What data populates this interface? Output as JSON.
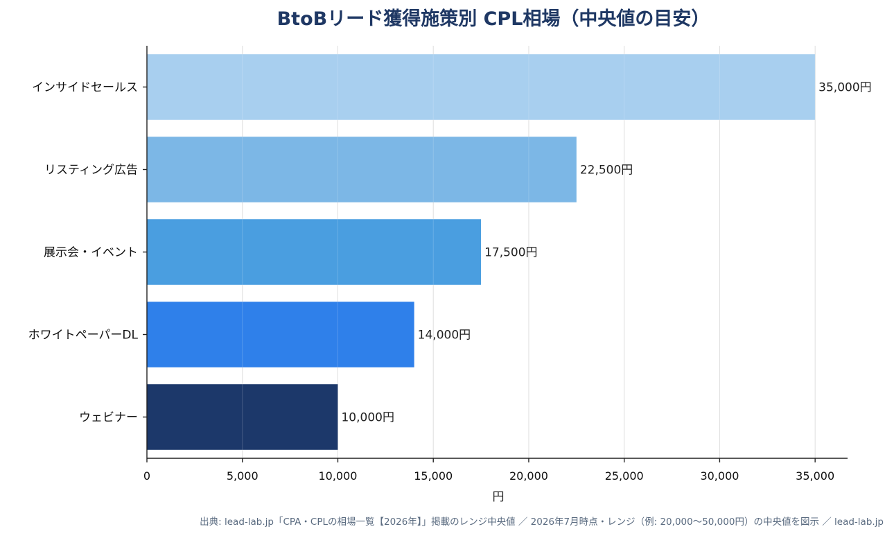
{
  "chart_data": {
    "type": "bar",
    "orientation": "horizontal",
    "title": "BtoBリード獲得施策別 CPL相場（中央値の目安）",
    "xlabel": "円",
    "ylabel": "",
    "xlim": [
      0,
      36700
    ],
    "x_ticks": [
      0,
      5000,
      10000,
      15000,
      20000,
      25000,
      30000,
      35000
    ],
    "x_tick_labels": [
      "0",
      "5,000",
      "10,000",
      "15,000",
      "20,000",
      "25,000",
      "30,000",
      "35,000"
    ],
    "categories": [
      "インサイドセールス",
      "リスティング広告",
      "展示会・イベント",
      "ホワイトペーパーDL",
      "ウェビナー"
    ],
    "values": [
      35000,
      22500,
      17500,
      14000,
      10000
    ],
    "data_labels": [
      "35,000円",
      "22,500円",
      "17,500円",
      "14,000円",
      "10,000円"
    ],
    "colors": [
      "#a8cfef",
      "#7cb7e6",
      "#4a9ee0",
      "#2f80ea",
      "#1c386a"
    ],
    "grid": "vertical",
    "legend": "none",
    "source_note": "出典: lead-lab.jp「CPA・CPLの相場一覧【2026年】」掲載のレンジ中央値 ／ 2026年7月時点・レンジ（例: 20,000〜50,000円）の中央値を図示 ／ lead-lab.jp"
  },
  "colors": {
    "title": "#1f3864",
    "axis": "#222222",
    "grid": "#d9d9d9",
    "note": "#5a6b80"
  }
}
